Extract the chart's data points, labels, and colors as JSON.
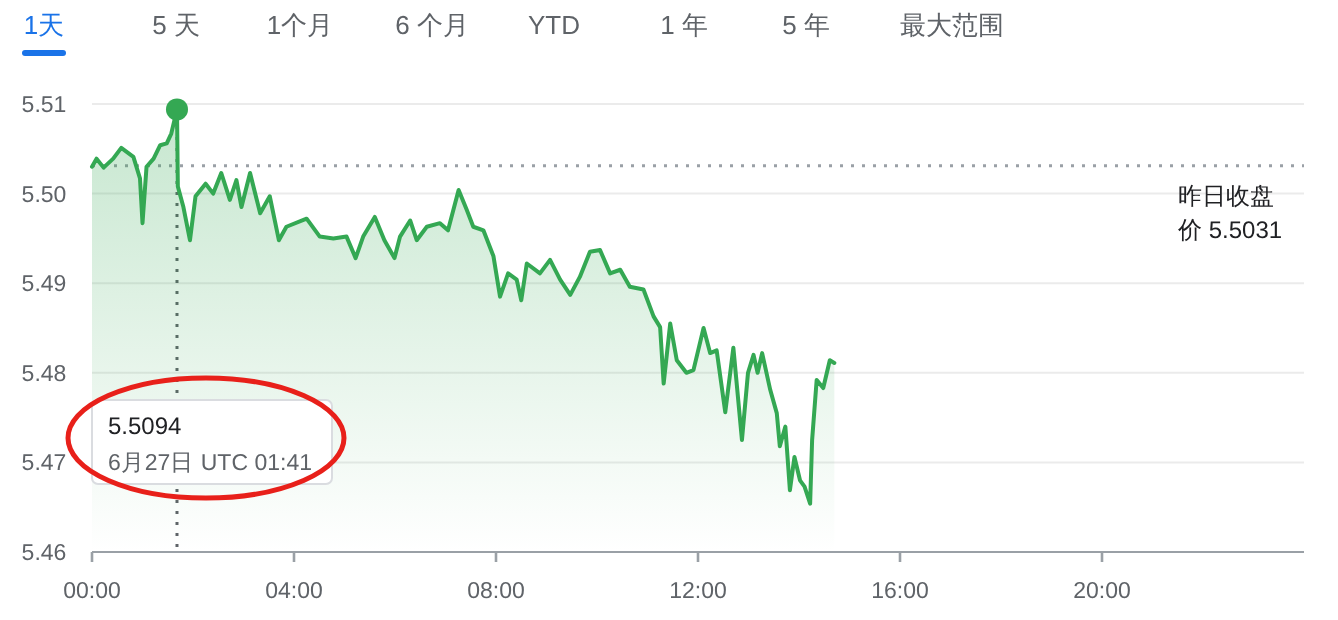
{
  "chart_data": {
    "type": "area",
    "color": "#34a853",
    "x": [
      0,
      0.09,
      0.23,
      0.42,
      0.58,
      0.82,
      0.95,
      1.0,
      1.08,
      1.22,
      1.35,
      1.48,
      1.57,
      1.683,
      1.7,
      1.81,
      1.94,
      2.05,
      2.25,
      2.4,
      2.56,
      2.73,
      2.86,
      2.96,
      3.13,
      3.33,
      3.52,
      3.7,
      3.85,
      4.25,
      4.51,
      4.78,
      5.04,
      5.22,
      5.37,
      5.6,
      5.79,
      5.99,
      6.1,
      6.3,
      6.43,
      6.63,
      6.89,
      7.05,
      7.26,
      7.42,
      7.55,
      7.75,
      7.95,
      8.08,
      8.24,
      8.41,
      8.5,
      8.61,
      8.87,
      9.07,
      9.27,
      9.47,
      9.66,
      9.86,
      10.06,
      10.26,
      10.46,
      10.65,
      10.92,
      11.12,
      11.25,
      11.32,
      11.45,
      11.58,
      11.77,
      11.91,
      12.11,
      12.24,
      12.37,
      12.54,
      12.7,
      12.87,
      12.99,
      13.1,
      13.18,
      13.27,
      13.43,
      13.56,
      13.62,
      13.73,
      13.82,
      13.91,
      14.02,
      14.11,
      14.22,
      14.26,
      14.35,
      14.48,
      14.61,
      14.7
    ],
    "values": [
      5.503,
      5.5039,
      5.5029,
      5.5039,
      5.5051,
      5.5041,
      5.5017,
      5.4967,
      5.503,
      5.5039,
      5.5054,
      5.5056,
      5.5067,
      5.5094,
      5.5008,
      5.4985,
      5.4948,
      5.4997,
      5.5011,
      5.5,
      5.5023,
      5.4993,
      5.5015,
      5.4985,
      5.5023,
      5.4978,
      5.4997,
      5.4948,
      5.4963,
      5.4972,
      5.4952,
      5.495,
      5.4952,
      5.4928,
      5.4952,
      5.4974,
      5.4948,
      5.4928,
      5.4952,
      5.497,
      5.4948,
      5.4963,
      5.4967,
      5.4959,
      5.5004,
      5.4982,
      5.4963,
      5.4959,
      5.493,
      5.4885,
      5.4911,
      5.4904,
      5.4881,
      5.4922,
      5.4911,
      5.4926,
      5.4904,
      5.4887,
      5.4907,
      5.4935,
      5.4937,
      5.4911,
      5.4915,
      5.4896,
      5.4893,
      5.4863,
      5.4851,
      5.4788,
      5.4855,
      5.4814,
      5.48,
      5.4803,
      5.485,
      5.4822,
      5.4825,
      5.4756,
      5.4828,
      5.4725,
      5.48,
      5.482,
      5.48,
      5.4822,
      5.4781,
      5.4755,
      5.4718,
      5.474,
      5.4669,
      5.4706,
      5.468,
      5.4673,
      5.4654,
      5.4725,
      5.4792,
      5.4783,
      5.4814,
      5.4811
    ],
    "xlim": [
      0,
      24
    ],
    "xticks": [
      {
        "value": 0,
        "label": "00:00"
      },
      {
        "value": 4,
        "label": "04:00"
      },
      {
        "value": 8,
        "label": "08:00"
      },
      {
        "value": 12,
        "label": "12:00"
      },
      {
        "value": 16,
        "label": "16:00"
      },
      {
        "value": 20,
        "label": "20:00"
      }
    ],
    "ylim": [
      5.46,
      5.51
    ],
    "yticks": [
      5.46,
      5.47,
      5.48,
      5.49,
      {
        "value": 5.5,
        "label": "5.50"
      },
      5.51
    ],
    "grid": "y",
    "marker": "none",
    "line_style": "solid",
    "ref_lines": [
      {
        "axis": "y",
        "value": 5.5031,
        "label": "昨日收盘价 5.5031",
        "color": "#9aa0a6",
        "line_style": "dotted"
      },
      {
        "axis": "x",
        "value": 1.683,
        "label": null,
        "color": "#5f6368",
        "line_style": "dotted"
      }
    ],
    "annotations": [
      "1天",
      "5 天",
      "1个月",
      "6 个月",
      "YTD",
      "1 年",
      "5 年",
      "最大范围",
      "5.5094",
      "6月27日 UTC 01:41"
    ]
  }
}
